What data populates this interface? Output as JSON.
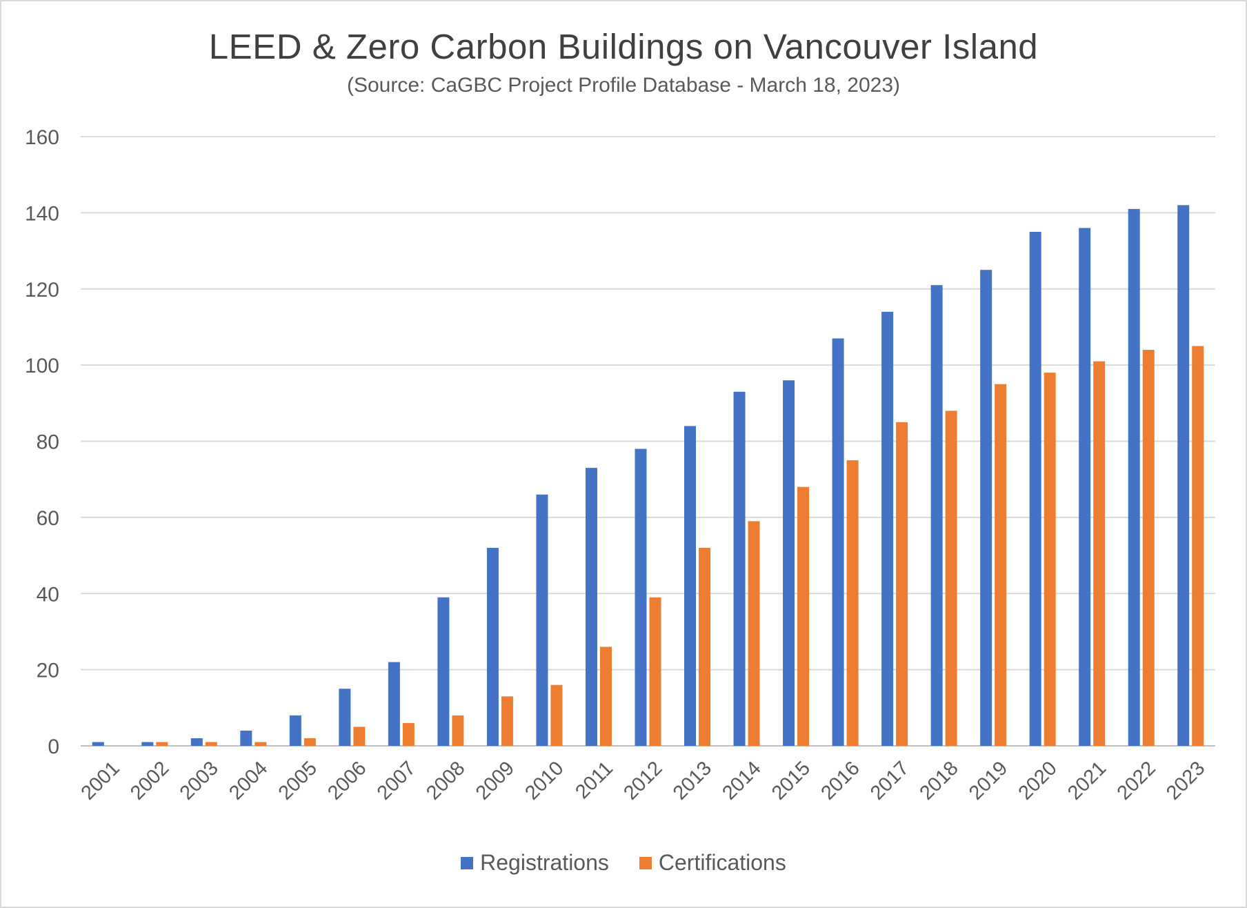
{
  "chart_data": {
    "type": "bar",
    "title": "LEED & Zero Carbon Buildings on Vancouver Island",
    "subtitle": "(Source: CaGBC Project Profile Database - March 18, 2023)",
    "xlabel": "",
    "ylabel": "",
    "ylim": [
      0,
      160
    ],
    "yticks": [
      0,
      20,
      40,
      60,
      80,
      100,
      120,
      140,
      160
    ],
    "grid": true,
    "legend_position": "bottom",
    "categories": [
      "2001",
      "2002",
      "2003",
      "2004",
      "2005",
      "2006",
      "2007",
      "2008",
      "2009",
      "2010",
      "2011",
      "2012",
      "2013",
      "2014",
      "2015",
      "2016",
      "2017",
      "2018",
      "2019",
      "2020",
      "2021",
      "2022",
      "2023"
    ],
    "series": [
      {
        "name": "Registrations",
        "color": "#4472c4",
        "values": [
          1,
          1,
          2,
          4,
          8,
          15,
          22,
          39,
          52,
          66,
          73,
          78,
          84,
          93,
          96,
          107,
          114,
          121,
          125,
          135,
          136,
          141,
          142
        ]
      },
      {
        "name": "Certifications",
        "color": "#ed7d31",
        "values": [
          0,
          1,
          1,
          1,
          2,
          5,
          6,
          8,
          13,
          16,
          26,
          39,
          52,
          59,
          68,
          75,
          85,
          88,
          95,
          98,
          101,
          104,
          105
        ]
      }
    ]
  }
}
